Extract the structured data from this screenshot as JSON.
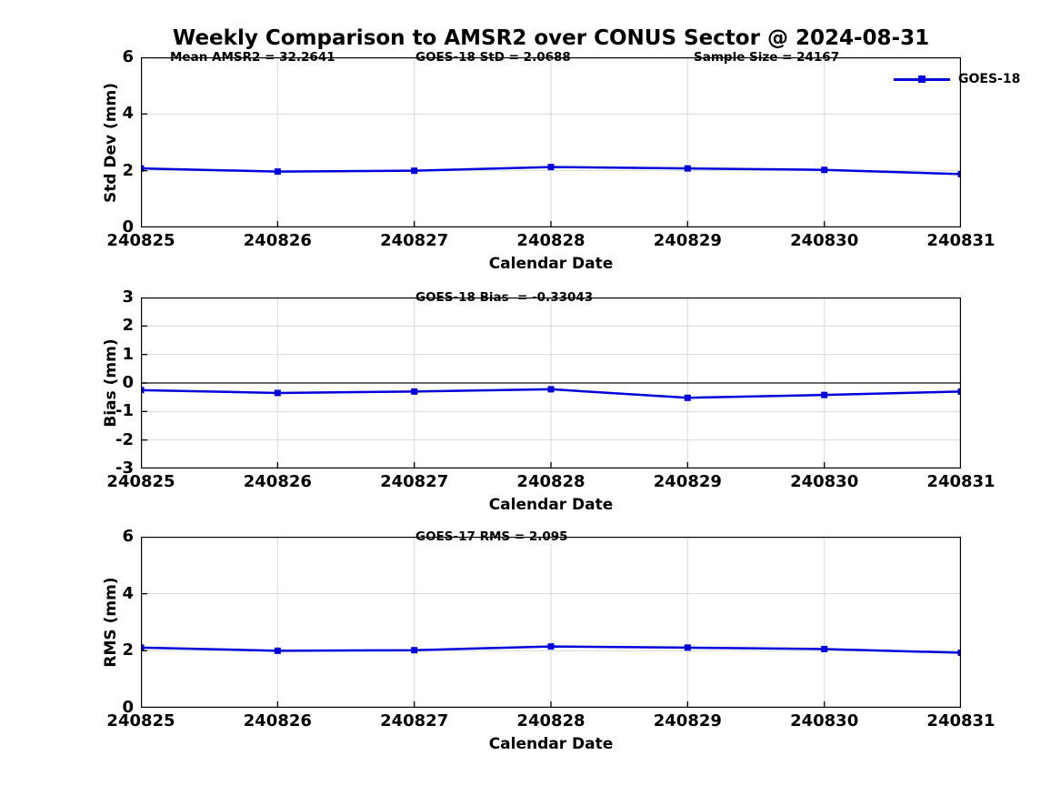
{
  "figure": {
    "title": "Weekly Comparison to AMSR2 over CONUS Sector @ 2024-08-31",
    "colors": {
      "series": "#0000dd",
      "grid": "#d9d9d9",
      "zero_line": "#333333",
      "axis": "#000000",
      "text": "#000000",
      "background": "#ffffff"
    }
  },
  "chart_data": [
    {
      "type": "line",
      "panel": "std-dev",
      "annotations": [
        "Mean AMSR2 = 32.2641",
        "GOES-18 StD = 2.0688",
        "Sample Size = 24167"
      ],
      "categories": [
        "240825",
        "240826",
        "240827",
        "240828",
        "240829",
        "240830",
        "240831"
      ],
      "series": [
        {
          "name": "GOES-18",
          "color": "#0000dd",
          "marker": "square",
          "values": [
            2.08,
            1.97,
            2.0,
            2.13,
            2.08,
            2.03,
            1.88
          ]
        }
      ],
      "xlabel": "Calendar Date",
      "ylabel": "Std Dev (mm)",
      "ylim": [
        0,
        6
      ],
      "yticks": [
        0,
        2,
        4,
        6
      ],
      "grid": true,
      "zero_line": false,
      "legend": {
        "label": "GOES-18",
        "position": "top-right-outside"
      }
    },
    {
      "type": "line",
      "panel": "bias",
      "annotations": [
        "GOES-18 Bias  = -0.33043"
      ],
      "categories": [
        "240825",
        "240826",
        "240827",
        "240828",
        "240829",
        "240830",
        "240831"
      ],
      "series": [
        {
          "name": "GOES-18",
          "color": "#0000dd",
          "marker": "square",
          "values": [
            -0.25,
            -0.35,
            -0.3,
            -0.22,
            -0.52,
            -0.42,
            -0.3
          ]
        }
      ],
      "xlabel": "Calendar Date",
      "ylabel": "Bias (mm)",
      "ylim": [
        -3,
        3
      ],
      "yticks": [
        -3,
        -2,
        -1,
        0,
        1,
        2,
        3
      ],
      "grid": true,
      "zero_line": true
    },
    {
      "type": "line",
      "panel": "rms",
      "annotations": [
        "GOES-17 RMS = 2.095"
      ],
      "categories": [
        "240825",
        "240826",
        "240827",
        "240828",
        "240829",
        "240830",
        "240831"
      ],
      "series": [
        {
          "name": "GOES-18",
          "color": "#0000dd",
          "marker": "square",
          "values": [
            2.11,
            2.0,
            2.02,
            2.15,
            2.11,
            2.06,
            1.93
          ]
        }
      ],
      "xlabel": "Calendar Date",
      "ylabel": "RMS (mm)",
      "ylim": [
        0,
        6
      ],
      "yticks": [
        0,
        2,
        4,
        6
      ],
      "grid": true,
      "zero_line": false
    }
  ]
}
